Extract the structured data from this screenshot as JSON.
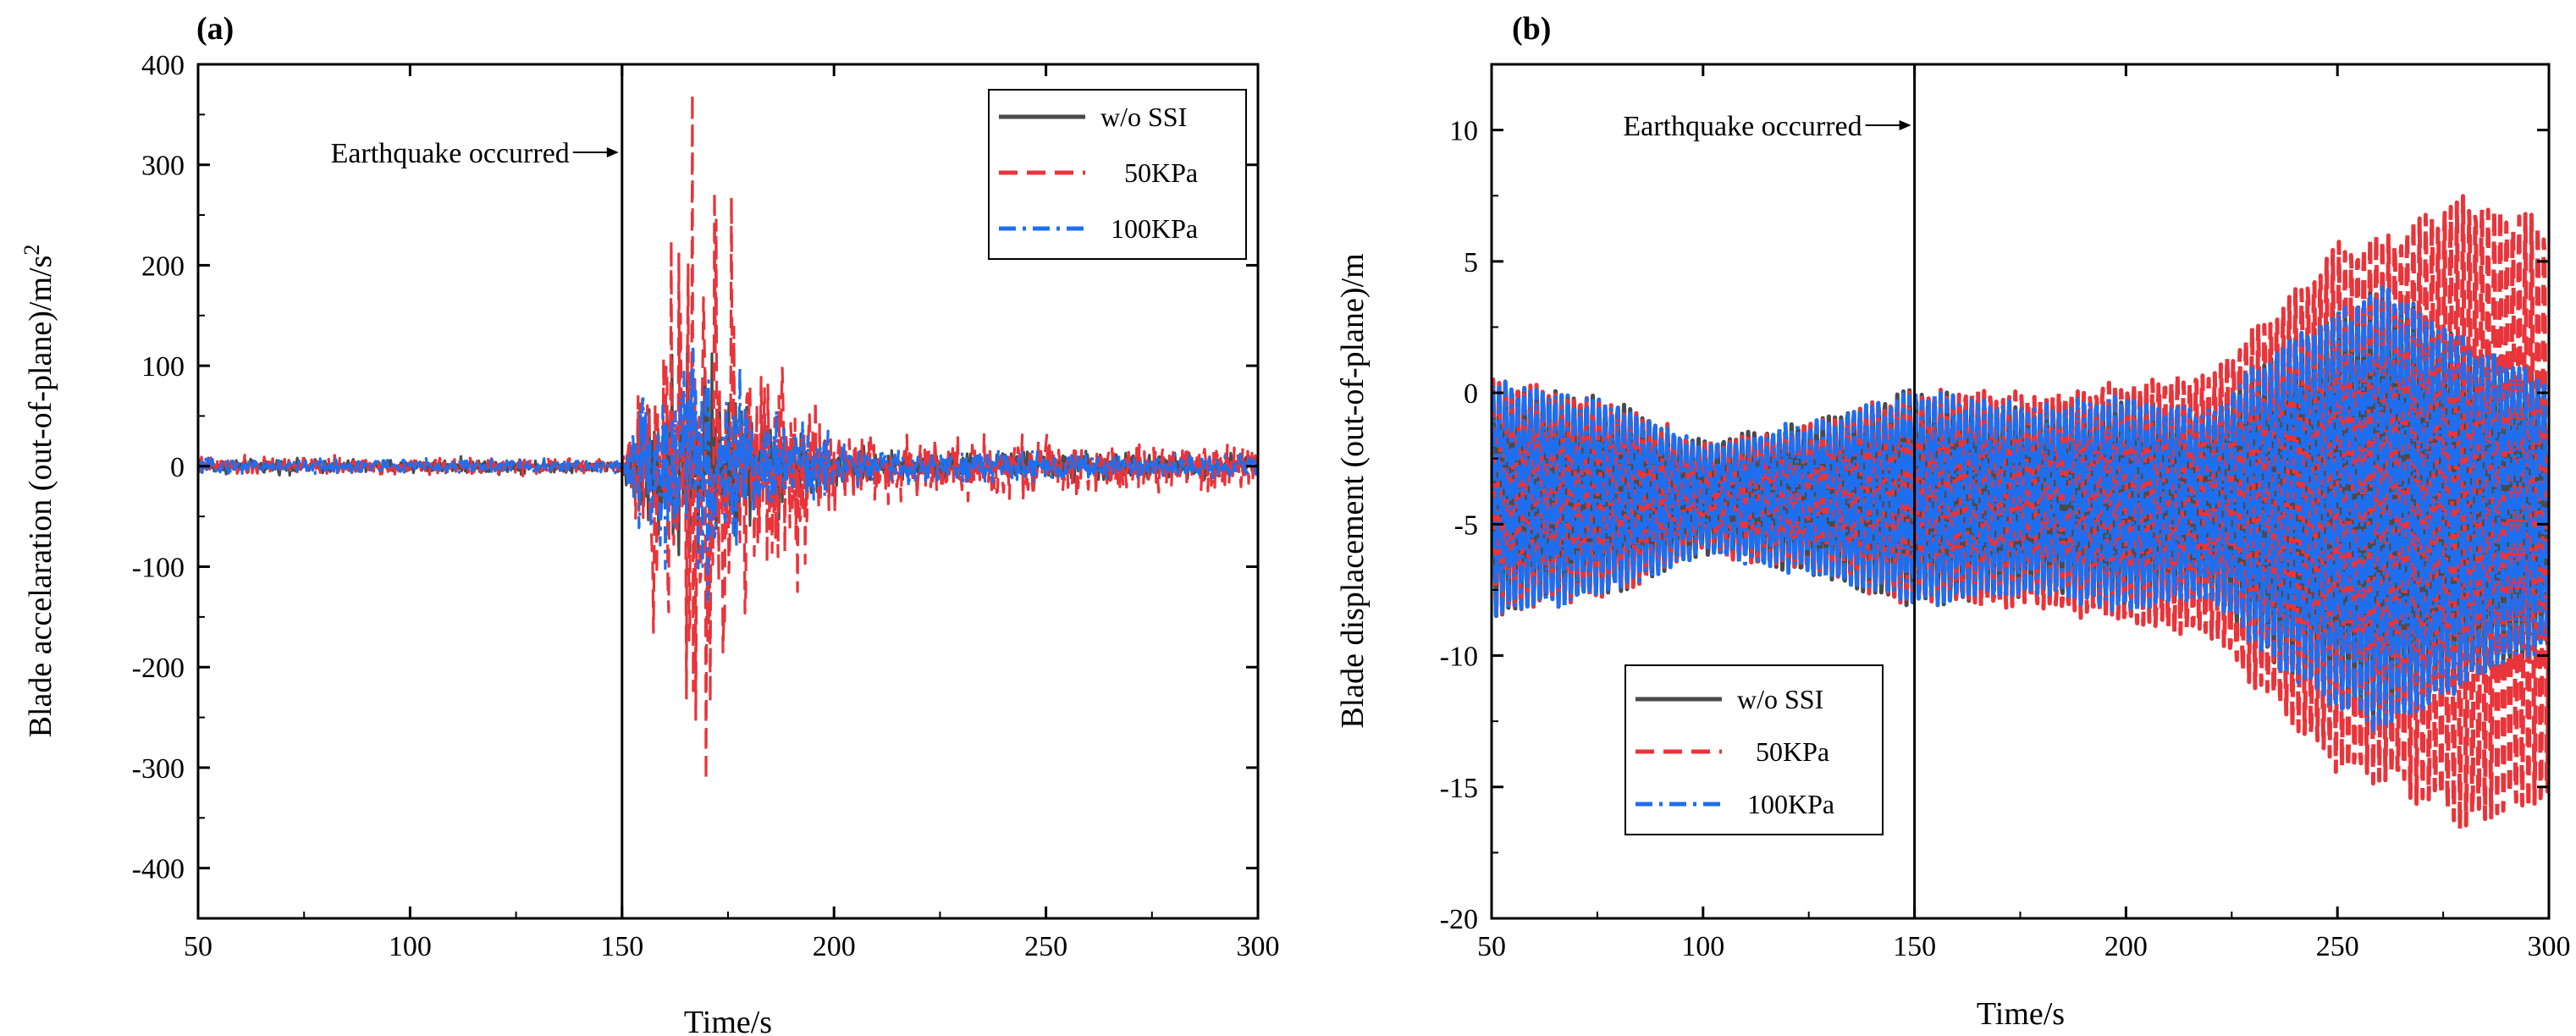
{
  "chart_data": [
    {
      "panel_label": "(a)",
      "type": "line",
      "xlabel": "Time/s",
      "ylabel": "Blade accelaration (out-of-plane)/m/s",
      "ylabel_sup": "2",
      "xlim": [
        50,
        300
      ],
      "ylim": [
        -450,
        400
      ],
      "xticks": [
        50,
        100,
        150,
        200,
        250,
        300
      ],
      "yticks": [
        -400,
        -300,
        -200,
        -100,
        0,
        100,
        200,
        300,
        400
      ],
      "annotation": {
        "text": "Earthquake occurred",
        "x": 150
      },
      "legend_position": "top-right",
      "series": [
        {
          "name": "w/o SSI",
          "color": "#4a4a4a",
          "style": "solid",
          "x": [
            50,
            80,
            110,
            150,
            155,
            160,
            165,
            170,
            175,
            180,
            190,
            200,
            210,
            230,
            250,
            270,
            300
          ],
          "amplitude": [
            10,
            10,
            10,
            8,
            60,
            110,
            130,
            120,
            90,
            70,
            40,
            28,
            18,
            16,
            16,
            16,
            14
          ]
        },
        {
          "name": "50KPa",
          "color": "#e8343a",
          "style": "dashed",
          "x": [
            50,
            80,
            110,
            150,
            155,
            160,
            165,
            170,
            175,
            180,
            190,
            200,
            210,
            230,
            250,
            270,
            300
          ],
          "amplitude": [
            14,
            12,
            12,
            10,
            110,
            210,
            300,
            360,
            200,
            150,
            110,
            60,
            40,
            38,
            38,
            30,
            24
          ]
        },
        {
          "name": "100KPa",
          "color": "#1e6ff0",
          "style": "dashdot",
          "x": [
            50,
            80,
            110,
            150,
            155,
            160,
            165,
            170,
            175,
            180,
            190,
            200,
            210,
            230,
            250,
            270,
            300
          ],
          "amplitude": [
            10,
            10,
            10,
            8,
            90,
            120,
            150,
            130,
            100,
            80,
            50,
            30,
            20,
            18,
            18,
            16,
            14
          ]
        }
      ]
    },
    {
      "panel_label": "(b)",
      "type": "line",
      "xlabel": "Time/s",
      "ylabel": "Blade displacement (out-of-plane)/m",
      "xlim": [
        50,
        300
      ],
      "ylim": [
        -20,
        12.5
      ],
      "xticks": [
        50,
        100,
        150,
        200,
        250,
        300
      ],
      "yticks": [
        -20,
        -15,
        -10,
        -5,
        0,
        5,
        10
      ],
      "annotation": {
        "text": "Earthquake occurred",
        "x": 150
      },
      "legend_position": "bottom-left",
      "series": [
        {
          "name": "w/o SSI",
          "color": "#4a4a4a",
          "style": "solid",
          "x": [
            50,
            80,
            100,
            130,
            150,
            180,
            200,
            220,
            235,
            250,
            262,
            280,
            300
          ],
          "amplitude": [
            4.5,
            3.5,
            2.0,
            3.0,
            4.0,
            3.5,
            4.0,
            3.5,
            6.0,
            7.5,
            8.5,
            6.5,
            5.0
          ]
        },
        {
          "name": "50KPa",
          "color": "#e8343a",
          "style": "dashed",
          "x": [
            50,
            80,
            100,
            130,
            150,
            180,
            200,
            220,
            235,
            250,
            262,
            280,
            300
          ],
          "amplitude": [
            4.5,
            3.5,
            2.0,
            3.0,
            4.0,
            4.0,
            4.5,
            5.0,
            7.5,
            10.0,
            10.5,
            12.0,
            11.0
          ]
        },
        {
          "name": "100KPa",
          "color": "#1e6ff0",
          "style": "dashdot",
          "x": [
            50,
            80,
            100,
            130,
            150,
            180,
            200,
            220,
            235,
            250,
            262,
            280,
            300
          ],
          "amplitude": [
            4.5,
            3.5,
            2.0,
            3.0,
            4.0,
            3.5,
            4.0,
            3.5,
            6.0,
            7.5,
            8.5,
            6.5,
            5.0
          ]
        }
      ]
    }
  ]
}
